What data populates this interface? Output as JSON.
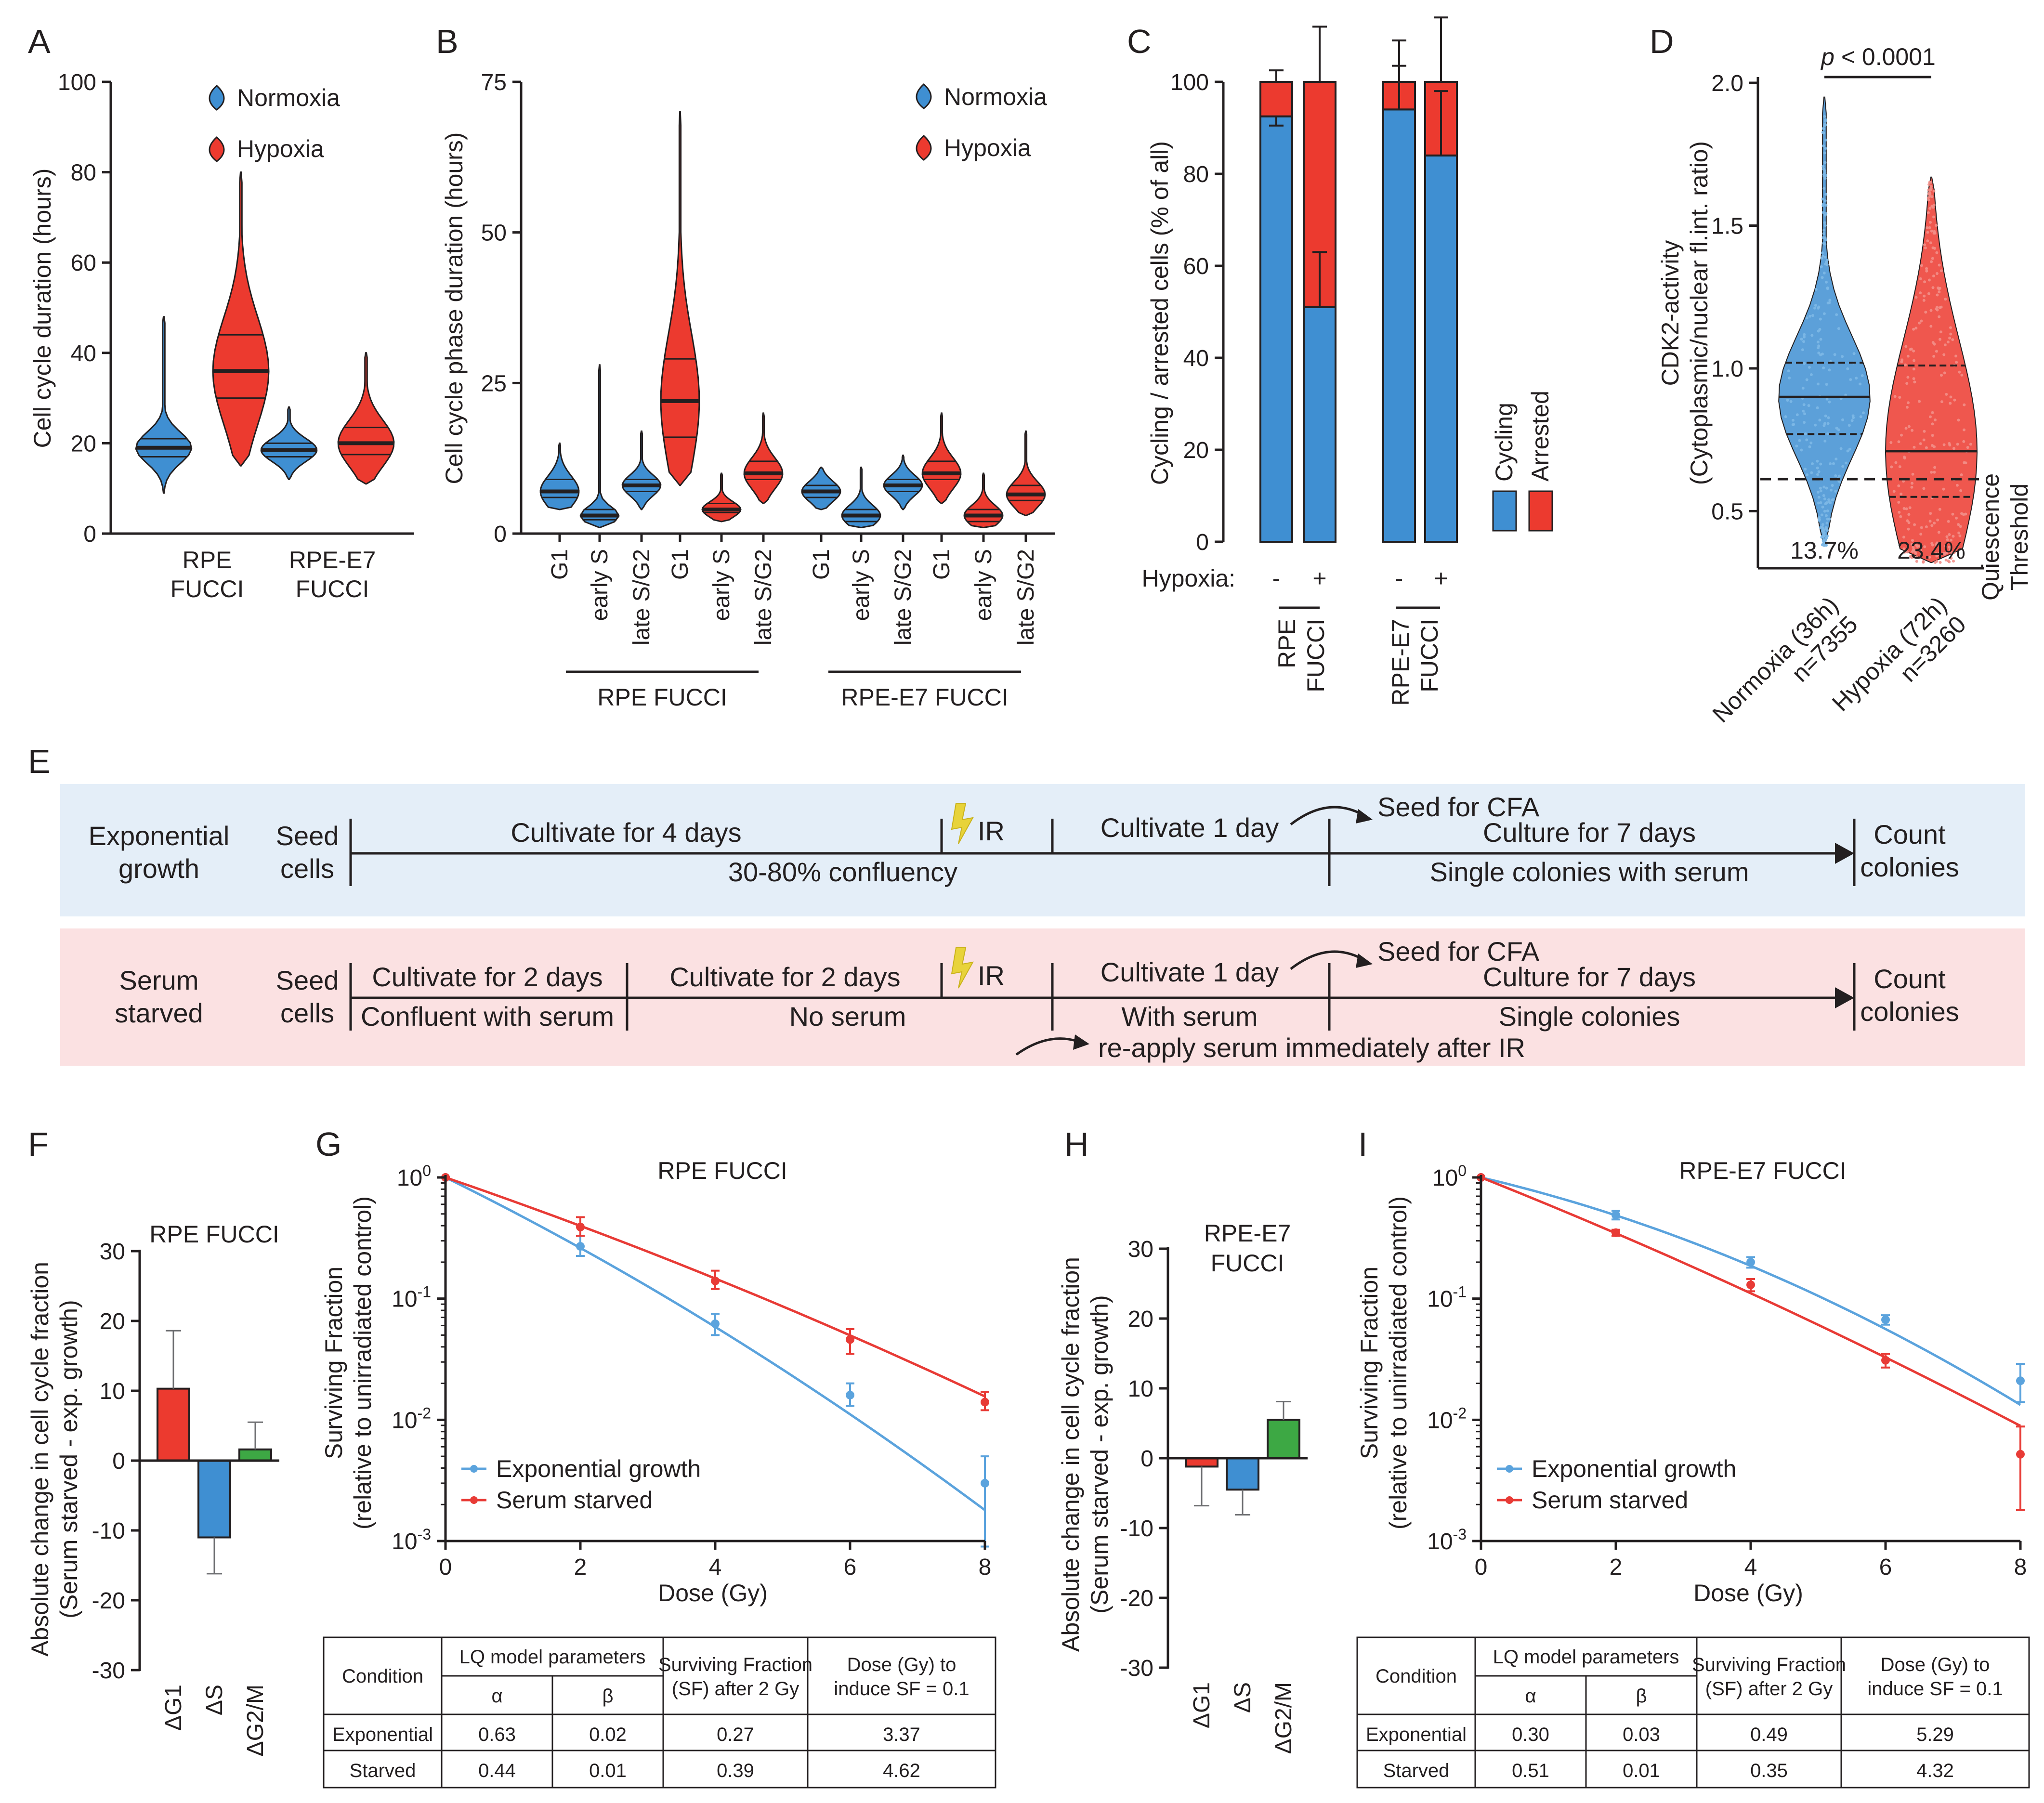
{
  "colors": {
    "normoxia": "#3f8fd2",
    "hypoxia": "#ec3a2f",
    "exponential": "#5ba3dd",
    "starved": "#e83b36",
    "g2m": "#3da844",
    "band_exp": "#e4eef8",
    "band_starved": "#fbe1e2",
    "ink": "#231f20"
  },
  "panels": {
    "A": "A",
    "B": "B",
    "C": "C",
    "D": "D",
    "E": "E",
    "F": "F",
    "G": "G",
    "H": "H",
    "I": "I"
  },
  "chart_data": [
    {
      "id": "A",
      "type": "violin",
      "ylabel": "Cell cycle duration (hours)",
      "ylim": [
        0,
        100
      ],
      "yticks": [
        "0",
        "20",
        "40",
        "60",
        "80",
        "100"
      ],
      "legend": [
        "Normoxia",
        "Hypoxia"
      ],
      "groups": [
        {
          "label1": "RPE",
          "label2": "FUCCI"
        },
        {
          "label1": "RPE-E7",
          "label2": "FUCCI"
        }
      ],
      "violins": [
        {
          "group": 0,
          "condition": "Normoxia",
          "min": 9,
          "max": 48,
          "median": 19,
          "q1": 17,
          "q3": 21
        },
        {
          "group": 0,
          "condition": "Hypoxia",
          "min": 15,
          "max": 80,
          "median": 36,
          "q1": 30,
          "q3": 44
        },
        {
          "group": 1,
          "condition": "Normoxia",
          "min": 12,
          "max": 28,
          "median": 18.5,
          "q1": 17,
          "q3": 20
        },
        {
          "group": 1,
          "condition": "Hypoxia",
          "min": 11,
          "max": 40,
          "median": 20,
          "q1": 17.5,
          "q3": 23.5
        }
      ]
    },
    {
      "id": "B",
      "type": "violin",
      "ylabel": "Cell cycle phase duration (hours)",
      "ylim": [
        0,
        75
      ],
      "yticks": [
        "0",
        "25",
        "50",
        "75"
      ],
      "legend": [
        "Normoxia",
        "Hypoxia"
      ],
      "categories": [
        "G1",
        "early S",
        "late S/G2",
        "G1",
        "early S",
        "late S/G2",
        "G1",
        "early S",
        "late S/G2",
        "G1",
        "early S",
        "late S/G2"
      ],
      "group_labels": [
        "RPE FUCCI",
        "RPE-E7 FUCCI"
      ],
      "violins": [
        {
          "condition": "Normoxia",
          "min": 4,
          "max": 15,
          "median": 7,
          "q1": 6,
          "q3": 9
        },
        {
          "condition": "Normoxia",
          "min": 1,
          "max": 28,
          "median": 3,
          "q1": 2.3,
          "q3": 4
        },
        {
          "condition": "Normoxia",
          "min": 4,
          "max": 17,
          "median": 8,
          "q1": 7,
          "q3": 9
        },
        {
          "condition": "Hypoxia",
          "min": 8,
          "max": 70,
          "median": 22,
          "q1": 16,
          "q3": 29
        },
        {
          "condition": "Hypoxia",
          "min": 2,
          "max": 10,
          "median": 4,
          "q1": 3.5,
          "q3": 5
        },
        {
          "condition": "Hypoxia",
          "min": 5,
          "max": 20,
          "median": 10,
          "q1": 9,
          "q3": 12
        },
        {
          "condition": "Normoxia",
          "min": 4,
          "max": 11,
          "median": 7,
          "q1": 6,
          "q3": 8
        },
        {
          "condition": "Normoxia",
          "min": 1,
          "max": 11,
          "median": 3,
          "q1": 2,
          "q3": 4
        },
        {
          "condition": "Normoxia",
          "min": 4,
          "max": 13,
          "median": 8,
          "q1": 7,
          "q3": 9
        },
        {
          "condition": "Hypoxia",
          "min": 5,
          "max": 20,
          "median": 10,
          "q1": 9,
          "q3": 12
        },
        {
          "condition": "Hypoxia",
          "min": 1,
          "max": 10,
          "median": 3,
          "q1": 2,
          "q3": 4
        },
        {
          "condition": "Hypoxia",
          "min": 3,
          "max": 17,
          "median": 6.5,
          "q1": 5.5,
          "q3": 8
        }
      ]
    },
    {
      "id": "C",
      "type": "stacked_bar",
      "ylabel": "Cycling / arrested cells (% of all)",
      "ylim": [
        0,
        100
      ],
      "yticks": [
        "0",
        "20",
        "40",
        "60",
        "80",
        "100"
      ],
      "row_label": "Hypoxia:",
      "hypoxia_marks": [
        "-",
        "+",
        "-",
        "+"
      ],
      "groups": [
        {
          "label1": "RPE",
          "label2": "FUCCI"
        },
        {
          "label1": "RPE-E7",
          "label2": "FUCCI"
        }
      ],
      "legend": [
        "Cycling",
        "Arrested"
      ],
      "bars": [
        {
          "cycling": 92.5,
          "arrested": 7.5,
          "err_top": 102.5,
          "err_cycling_low": 90.5
        },
        {
          "cycling": 51,
          "arrested": 49,
          "err_top": 112,
          "err_cycling_high": 63
        },
        {
          "cycling": 94,
          "arrested": 6,
          "err_top": 109,
          "err_cycling_high": 103.5
        },
        {
          "cycling": 84,
          "arrested": 16,
          "err_top": 114,
          "err_cycling_high": 98
        }
      ]
    },
    {
      "id": "D",
      "type": "violin_scatter",
      "ylabel_line1": "CDK2-activity",
      "ylabel_line2": "(Cytoplasmic/nuclear fl.int. ratio)",
      "ylim": [
        0.3,
        2.0
      ],
      "yticks": [
        "0.5",
        "1.0",
        "1.5",
        "2.0"
      ],
      "pvalue_prefix": "p",
      "pvalue_rest": " < 0.0001",
      "threshold": 0.54,
      "threshold_label_line1": "Quiescence",
      "threshold_label_line2": "Threshold",
      "groups": [
        {
          "label1": "Normoxia (36h)",
          "label2": "n=7355",
          "percent_below": "13.7%",
          "median": 0.9,
          "q1": 0.77,
          "q3": 1.02,
          "min": 0.38,
          "max": 1.95
        },
        {
          "label1": "Hypoxia (72h)",
          "label2": "n=3260",
          "percent_below": "23.4%",
          "median": 0.71,
          "q1": 0.55,
          "q3": 1.01,
          "min": 0.32,
          "max": 1.67
        }
      ]
    },
    {
      "id": "F",
      "type": "bar",
      "title": "RPE FUCCI",
      "ylabel_line1": "Absolute change in cell cycle fraction",
      "ylabel_line2": "(Serum starved - exp. growth)",
      "ylim": [
        -30,
        30
      ],
      "yticks": [
        "-30",
        "-20",
        "-10",
        "0",
        "10",
        "20",
        "30"
      ],
      "categories": [
        "ΔG1",
        "ΔS",
        "ΔG2/M"
      ],
      "values": [
        10.3,
        -11,
        1.6
      ],
      "errors": [
        8.3,
        5.2,
        3.9
      ]
    },
    {
      "id": "G",
      "type": "line_log",
      "title": "RPE FUCCI",
      "xlabel": "Dose (Gy)",
      "ylabel_line1": "Surviving Fraction",
      "ylabel_line2": "(relative to unirradiated control)",
      "xticks": [
        "0",
        "2",
        "4",
        "6",
        "8"
      ],
      "ytick_bases": [
        "10",
        "10",
        "10",
        "10"
      ],
      "ytick_exps": [
        "0",
        "-1",
        "-2",
        "-3"
      ],
      "series": [
        {
          "name": "Exponential growth",
          "x": [
            0,
            2,
            4,
            6,
            8
          ],
          "y": [
            1.0,
            0.27,
            0.062,
            0.016,
            0.003
          ],
          "err_hi": [
            1.0,
            0.33,
            0.075,
            0.02,
            0.005
          ],
          "err_lo": [
            1.0,
            0.225,
            0.05,
            0.013,
            0.0009
          ],
          "alpha": 0.63,
          "beta": 0.02
        },
        {
          "name": "Serum starved",
          "x": [
            0,
            2,
            4,
            6,
            8
          ],
          "y": [
            1.0,
            0.39,
            0.14,
            0.046,
            0.014
          ],
          "err_hi": [
            1.0,
            0.47,
            0.17,
            0.056,
            0.017
          ],
          "err_lo": [
            1.0,
            0.33,
            0.12,
            0.035,
            0.012
          ],
          "alpha": 0.44,
          "beta": 0.01
        }
      ],
      "table": {
        "h_condition": "Condition",
        "h_lq": "LQ model parameters",
        "h_alpha": "α",
        "h_beta": "β",
        "h_sf1": "Surviving Fraction",
        "h_sf2": "(SF) after 2 Gy",
        "h_dose1": "Dose (Gy) to",
        "h_dose2": "induce SF = 0.1",
        "rows": [
          {
            "condition": "Exponential",
            "alpha": "0.63",
            "beta": "0.02",
            "sf": "0.27",
            "dose": "3.37"
          },
          {
            "condition": "Starved",
            "alpha": "0.44",
            "beta": "0.01",
            "sf": "0.39",
            "dose": "4.62"
          }
        ]
      }
    },
    {
      "id": "H",
      "type": "bar",
      "title_line1": "RPE-E7",
      "title_line2": "FUCCI",
      "ylabel_line1": "Absolute change in cell cycle fraction",
      "ylabel_line2": "(Serum starved - exp. growth)",
      "ylim": [
        -30,
        30
      ],
      "yticks": [
        "-30",
        "-20",
        "-10",
        "0",
        "10",
        "20",
        "30"
      ],
      "categories": [
        "ΔG1",
        "ΔS",
        "ΔG2/M"
      ],
      "values": [
        -1.2,
        -4.5,
        5.5
      ],
      "errors": [
        5.6,
        3.6,
        2.6
      ]
    },
    {
      "id": "I",
      "type": "line_log",
      "title": "RPE-E7 FUCCI",
      "xlabel": "Dose (Gy)",
      "ylabel_line1": "Surviving Fraction",
      "ylabel_line2": "(relative to unirradiated control)",
      "xticks": [
        "0",
        "2",
        "4",
        "6",
        "8"
      ],
      "ytick_bases": [
        "10",
        "10",
        "10",
        "10"
      ],
      "ytick_exps": [
        "0",
        "-1",
        "-2",
        "-3"
      ],
      "series": [
        {
          "name": "Exponential growth",
          "x": [
            0,
            2,
            4,
            6,
            8
          ],
          "y": [
            1.0,
            0.49,
            0.2,
            0.067,
            0.021
          ],
          "err_hi": [
            1.0,
            0.53,
            0.22,
            0.073,
            0.029
          ],
          "err_lo": [
            1.0,
            0.45,
            0.18,
            0.061,
            0.014
          ],
          "alpha": 0.3,
          "beta": 0.03
        },
        {
          "name": "Serum starved",
          "x": [
            0,
            2,
            4,
            6,
            8
          ],
          "y": [
            1.0,
            0.35,
            0.13,
            0.031,
            0.0052
          ],
          "err_hi": [
            1.0,
            0.37,
            0.145,
            0.035,
            0.0088
          ],
          "err_lo": [
            1.0,
            0.33,
            0.115,
            0.027,
            0.0018
          ],
          "alpha": 0.51,
          "beta": 0.01
        }
      ],
      "table": {
        "h_condition": "Condition",
        "h_lq": "LQ model parameters",
        "h_alpha": "α",
        "h_beta": "β",
        "h_sf1": "Surviving Fraction",
        "h_sf2": "(SF) after 2 Gy",
        "h_dose1": "Dose (Gy) to",
        "h_dose2": "induce SF = 0.1",
        "rows": [
          {
            "condition": "Exponential",
            "alpha": "0.30",
            "beta": "0.03",
            "sf": "0.49",
            "dose": "5.29"
          },
          {
            "condition": "Starved",
            "alpha": "0.51",
            "beta": "0.01",
            "sf": "0.35",
            "dose": "4.32"
          }
        ]
      }
    }
  ],
  "timeline": {
    "exp": {
      "title1": "Exponential",
      "title2": "growth",
      "seed1": "Seed",
      "seed2": "cells",
      "cultivate": "Cultivate for 4 days",
      "confluency": "30-80% confluency",
      "ir": "IR",
      "cultivate1": "Cultivate 1 day",
      "cfa": "Seed for CFA",
      "culture7": "Culture for 7 days",
      "single": "Single colonies with serum",
      "count1": "Count",
      "count2": "colonies"
    },
    "starved": {
      "title1": "Serum",
      "title2": "starved",
      "seed1": "Seed",
      "seed2": "cells",
      "cultivate2a": "Cultivate for 2 days",
      "confluent": "Confluent with serum",
      "cultivate2b": "Cultivate for 2 days",
      "noserum": "No serum",
      "ir": "IR",
      "cultivate1": "Cultivate 1 day",
      "withserum": "With serum",
      "reapply": "re-apply serum immediately after IR",
      "cfa": "Seed for CFA",
      "culture7": "Culture for 7 days",
      "single": "Single colonies",
      "count1": "Count",
      "count2": "colonies"
    }
  }
}
